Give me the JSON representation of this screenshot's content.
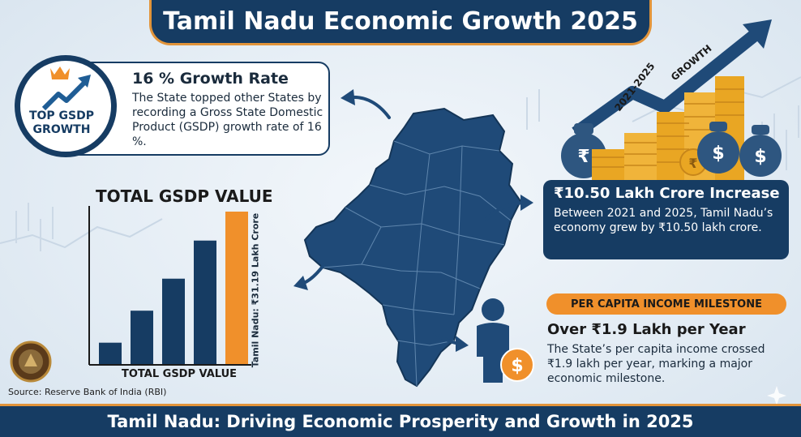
{
  "title": "Tamil Nadu Economic Growth 2025",
  "footer": "Tamil Nadu: Driving Economic Prosperity and Growth in 2025",
  "growth_card": {
    "badge_line1": "TOP GSDP",
    "badge_line2": "GROWTH",
    "title": "16 % Growth Rate",
    "text": "The State topped other States by recording a Gross State Domestic Product (GSDP) growth rate of 16 %."
  },
  "gsdp_chart": {
    "title": "TOTAL GSDP VALUE",
    "ylabel": "Tamil Nadu: ₹31.19 Lakh Crore",
    "xlabel": "TOTAL GSDP VALUE",
    "bar_colors": [
      "#163c63",
      "#163c63",
      "#163c63",
      "#163c63",
      "#f0902b"
    ],
    "bar_levels": [
      0.14,
      0.35,
      0.56,
      0.81,
      1.0
    ]
  },
  "increase_card": {
    "graphic_label1": "2021-2025",
    "graphic_label2": "GROWTH",
    "title": "₹10.50 Lakh Crore Increase",
    "text": "Between 2021 and 2025, Tamil Nadu’s economy grew by ₹10.50 lakh crore."
  },
  "per_capita": {
    "pill": "PER CAPITA INCOME MILESTONE",
    "title": "Over ₹1.9 Lakh per Year",
    "text": "The State’s per capita income crossed ₹1.9 lakh per year, marking a major economic milestone."
  },
  "source": "Source: Reserve Bank of India (RBI)",
  "colors": {
    "navy": "#163c63",
    "orange": "#f0902b",
    "gold": "#e9a623",
    "background": "#e6eef6"
  }
}
